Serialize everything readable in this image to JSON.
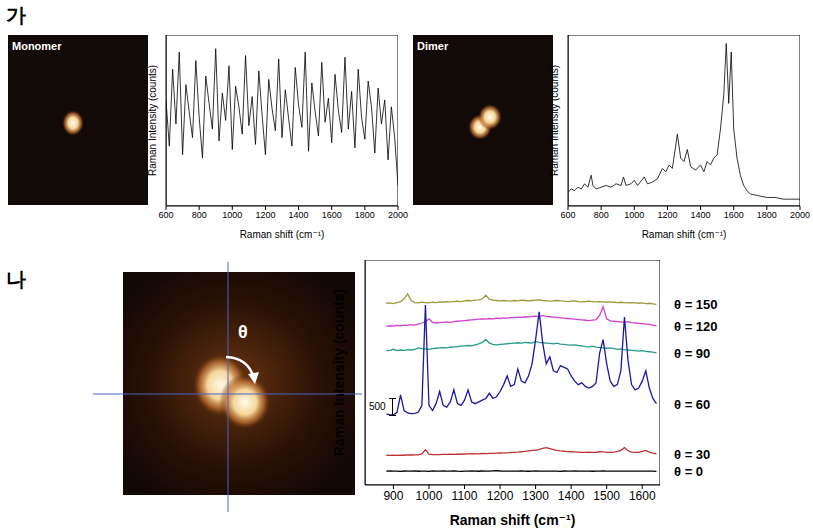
{
  "chart_data": [
    {
      "type": "line",
      "x_label": "Raman shift (cm⁻¹)",
      "y_label": "Raman Intensity (counts)",
      "color": "#000000",
      "tick_labels": "x",
      "xlim": [
        600,
        2000
      ],
      "xticks": [
        600,
        800,
        1000,
        1200,
        1400,
        1600,
        1800,
        2000
      ],
      "ylim": [
        0,
        100
      ],
      "x": [
        600,
        620,
        640,
        660,
        680,
        700,
        720,
        740,
        760,
        780,
        800,
        820,
        840,
        860,
        880,
        900,
        920,
        940,
        960,
        980,
        1000,
        1020,
        1040,
        1060,
        1080,
        1100,
        1120,
        1140,
        1160,
        1180,
        1200,
        1220,
        1240,
        1260,
        1280,
        1300,
        1320,
        1340,
        1360,
        1380,
        1400,
        1420,
        1440,
        1460,
        1480,
        1500,
        1520,
        1540,
        1560,
        1580,
        1600,
        1620,
        1640,
        1660,
        1680,
        1700,
        1720,
        1740,
        1760,
        1780,
        1800,
        1820,
        1840,
        1860,
        1880,
        1900,
        1920,
        1940,
        1960,
        1980,
        2000
      ],
      "values": [
        62,
        35,
        80,
        48,
        90,
        30,
        71,
        55,
        40,
        85,
        52,
        28,
        76,
        60,
        45,
        92,
        38,
        66,
        50,
        82,
        33,
        70,
        58,
        42,
        88,
        47,
        64,
        36,
        79,
        53,
        30,
        74,
        57,
        44,
        86,
        40,
        68,
        51,
        35,
        81,
        59,
        46,
        90,
        32,
        72,
        55,
        41,
        84,
        49,
        63,
        37,
        77,
        56,
        43,
        87,
        45,
        67,
        34,
        80,
        52,
        39,
        73,
        58,
        31,
        69,
        48,
        62,
        27,
        58,
        40,
        12
      ]
    },
    {
      "type": "line",
      "x_label": "Raman shift (cm⁻¹)",
      "y_label": "Raman Intensity (counts)",
      "color": "#000000",
      "tick_labels": "x",
      "xlim": [
        600,
        2000
      ],
      "xticks": [
        600,
        800,
        1000,
        1200,
        1400,
        1600,
        1800,
        2000
      ],
      "ylim": [
        0,
        100
      ],
      "x": [
        600,
        620,
        640,
        660,
        680,
        700,
        720,
        740,
        750,
        770,
        800,
        830,
        860,
        890,
        920,
        935,
        950,
        980,
        1000,
        1020,
        1060,
        1080,
        1110,
        1140,
        1170,
        1190,
        1210,
        1230,
        1260,
        1280,
        1300,
        1320,
        1340,
        1370,
        1400,
        1420,
        1440,
        1460,
        1480,
        1500,
        1520,
        1540,
        1555,
        1570,
        1585,
        1600,
        1620,
        1640,
        1660,
        1680,
        1700,
        1750,
        1800,
        1850,
        1900,
        1950,
        2000
      ],
      "values": [
        8,
        10,
        9,
        11,
        10,
        13,
        11,
        18,
        12,
        10,
        11,
        12,
        11,
        13,
        12,
        17,
        12,
        13,
        15,
        12,
        17,
        13,
        14,
        16,
        22,
        20,
        24,
        22,
        42,
        28,
        26,
        33,
        23,
        21,
        24,
        20,
        26,
        24,
        28,
        30,
        45,
        65,
        95,
        60,
        90,
        45,
        28,
        18,
        12,
        9,
        7,
        6,
        5,
        5,
        4,
        4,
        4
      ]
    },
    {
      "type": "line",
      "x_label": "Raman shift (cm⁻¹)",
      "y_label": "Raman Intensity (counts)",
      "tick_labels": "x",
      "scale_bar": 500,
      "xlim": [
        820,
        1650
      ],
      "xticks": [
        900,
        1000,
        1100,
        1200,
        1300,
        1400,
        1500,
        1600
      ],
      "ylim": [
        0,
        6500
      ],
      "x": [
        880,
        890,
        900,
        910,
        920,
        930,
        940,
        950,
        960,
        970,
        980,
        990,
        1000,
        1010,
        1020,
        1030,
        1040,
        1050,
        1060,
        1070,
        1080,
        1090,
        1100,
        1110,
        1120,
        1130,
        1140,
        1150,
        1160,
        1170,
        1180,
        1190,
        1200,
        1210,
        1220,
        1230,
        1240,
        1250,
        1260,
        1270,
        1280,
        1290,
        1300,
        1310,
        1320,
        1330,
        1340,
        1350,
        1360,
        1370,
        1380,
        1390,
        1400,
        1410,
        1420,
        1430,
        1440,
        1450,
        1460,
        1470,
        1480,
        1490,
        1500,
        1510,
        1520,
        1530,
        1540,
        1550,
        1560,
        1570,
        1580,
        1590,
        1600,
        1610,
        1620,
        1630,
        1640
      ],
      "series": [
        {
          "name": "θ = 150",
          "color": "#9a9a3a",
          "values": [
            5250,
            5260,
            5240,
            5270,
            5300,
            5380,
            5520,
            5330,
            5270,
            5260,
            5280,
            5270,
            5260,
            5280,
            5270,
            5290,
            5280,
            5300,
            5290,
            5300,
            5310,
            5300,
            5320,
            5330,
            5320,
            5340,
            5350,
            5380,
            5480,
            5360,
            5340,
            5330,
            5320,
            5330,
            5320,
            5310,
            5330,
            5320,
            5340,
            5330,
            5320,
            5330,
            5340,
            5350,
            5330,
            5320,
            5310,
            5320,
            5330,
            5320,
            5310,
            5300,
            5310,
            5320,
            5300,
            5290,
            5300,
            5310,
            5300,
            5290,
            5300,
            5290,
            5280,
            5290,
            5280,
            5270,
            5280,
            5270,
            5260,
            5270,
            5260,
            5250,
            5260,
            5240,
            5250,
            5230,
            5220
          ]
        },
        {
          "name": "θ = 120",
          "color": "#d040d0",
          "values": [
            4580,
            4600,
            4590,
            4610,
            4600,
            4620,
            4610,
            4630,
            4620,
            4650,
            4680,
            4720,
            4800,
            4700,
            4680,
            4690,
            4700,
            4710,
            4700,
            4720,
            4730,
            4740,
            4750,
            4760,
            4770,
            4780,
            4790,
            4800,
            4790,
            4810,
            4800,
            4820,
            4810,
            4830,
            4820,
            4840,
            4830,
            4850,
            4840,
            4860,
            4850,
            4870,
            4880,
            4860,
            4900,
            4870,
            4860,
            4850,
            4840,
            4830,
            4820,
            4810,
            4800,
            4790,
            4780,
            4770,
            4760,
            4750,
            4760,
            4780,
            4900,
            5150,
            4800,
            4740,
            4730,
            4720,
            4710,
            4700,
            4720,
            4690,
            4680,
            4670,
            4660,
            4650,
            4640,
            4620,
            4600
          ]
        },
        {
          "name": "θ = 90",
          "color": "#2a9a8a",
          "values": [
            3880,
            3890,
            3920,
            3880,
            3900,
            3890,
            3910,
            3900,
            3920,
            3960,
            3940,
            3930,
            3920,
            3940,
            3950,
            3960,
            3970,
            3960,
            3980,
            3990,
            4000,
            4010,
            4020,
            4030,
            4020,
            4050,
            4080,
            4120,
            4200,
            4100,
            4060,
            4050,
            4060,
            4070,
            4080,
            4090,
            4100,
            4110,
            4100,
            4120,
            4110,
            4100,
            4150,
            4120,
            4110,
            4100,
            4090,
            4080,
            4100,
            4070,
            4060,
            4050,
            4040,
            4050,
            4030,
            4020,
            4000,
            3990,
            4010,
            3980,
            3970,
            3960,
            3950,
            3960,
            3940,
            3920,
            3930,
            3910,
            3900,
            3890,
            3880,
            3870,
            3880,
            3860,
            3850,
            3840,
            3820
          ]
        },
        {
          "name": "θ = 60",
          "color": "#1a1aa0",
          "values": [
            2050,
            2030,
            2020,
            2100,
            2600,
            2150,
            2080,
            2060,
            2070,
            2100,
            2300,
            5200,
            2300,
            2150,
            2350,
            2700,
            2300,
            2250,
            2400,
            2750,
            2350,
            2300,
            2450,
            2750,
            2400,
            2350,
            2400,
            2450,
            2500,
            2650,
            2500,
            2550,
            2700,
            2900,
            3150,
            2850,
            2900,
            3350,
            3000,
            2950,
            3150,
            3500,
            4200,
            5000,
            4100,
            3500,
            3700,
            3300,
            3250,
            3450,
            3400,
            3350,
            3150,
            3000,
            2900,
            2950,
            2850,
            2800,
            2850,
            2950,
            3800,
            4200,
            3500,
            3000,
            2850,
            2900,
            3300,
            4850,
            3600,
            2900,
            2750,
            2800,
            3000,
            3300,
            2800,
            2500,
            2350
          ]
        },
        {
          "name": "θ = 30",
          "color": "#c03030",
          "values": [
            860,
            855,
            862,
            858,
            865,
            860,
            870,
            866,
            872,
            868,
            900,
            1020,
            890,
            875,
            880,
            878,
            885,
            882,
            890,
            886,
            892,
            888,
            895,
            900,
            905,
            898,
            902,
            910,
            906,
            912,
            915,
            920,
            925,
            930,
            928,
            940,
            945,
            950,
            960,
            970,
            985,
            1000,
            1010,
            1030,
            1060,
            1080,
            1050,
            1020,
            1000,
            985,
            975,
            965,
            960,
            955,
            950,
            945,
            940,
            950,
            945,
            940,
            960,
            955,
            945,
            940,
            950,
            970,
            1000,
            1080,
            990,
            950,
            940,
            945,
            970,
            1000,
            950,
            920,
            900
          ]
        },
        {
          "name": "θ = 0",
          "color": "#000000",
          "values": [
            400,
            405,
            398,
            402,
            396,
            404,
            399,
            401,
            410,
            397,
            403,
            400,
            395,
            406,
            401,
            398,
            404,
            399,
            402,
            408,
            400,
            396,
            403,
            401,
            405,
            399,
            397,
            404,
            402,
            400,
            410,
            415,
            405,
            400,
            398,
            403,
            401,
            399,
            404,
            402,
            397,
            400,
            405,
            401,
            398,
            403,
            399,
            402,
            400,
            396,
            404,
            401,
            399,
            405,
            402,
            398,
            400,
            403,
            397,
            401,
            399,
            404,
            402,
            400,
            398,
            401,
            403,
            399,
            402,
            400,
            398,
            401,
            399,
            403,
            400,
            398,
            395
          ]
        }
      ]
    }
  ],
  "figure": {
    "panel_labels": [
      "가",
      "나"
    ],
    "images": [
      {
        "label": "Monomer"
      },
      {
        "label": "Dimer"
      },
      {
        "label": "θ"
      }
    ]
  }
}
